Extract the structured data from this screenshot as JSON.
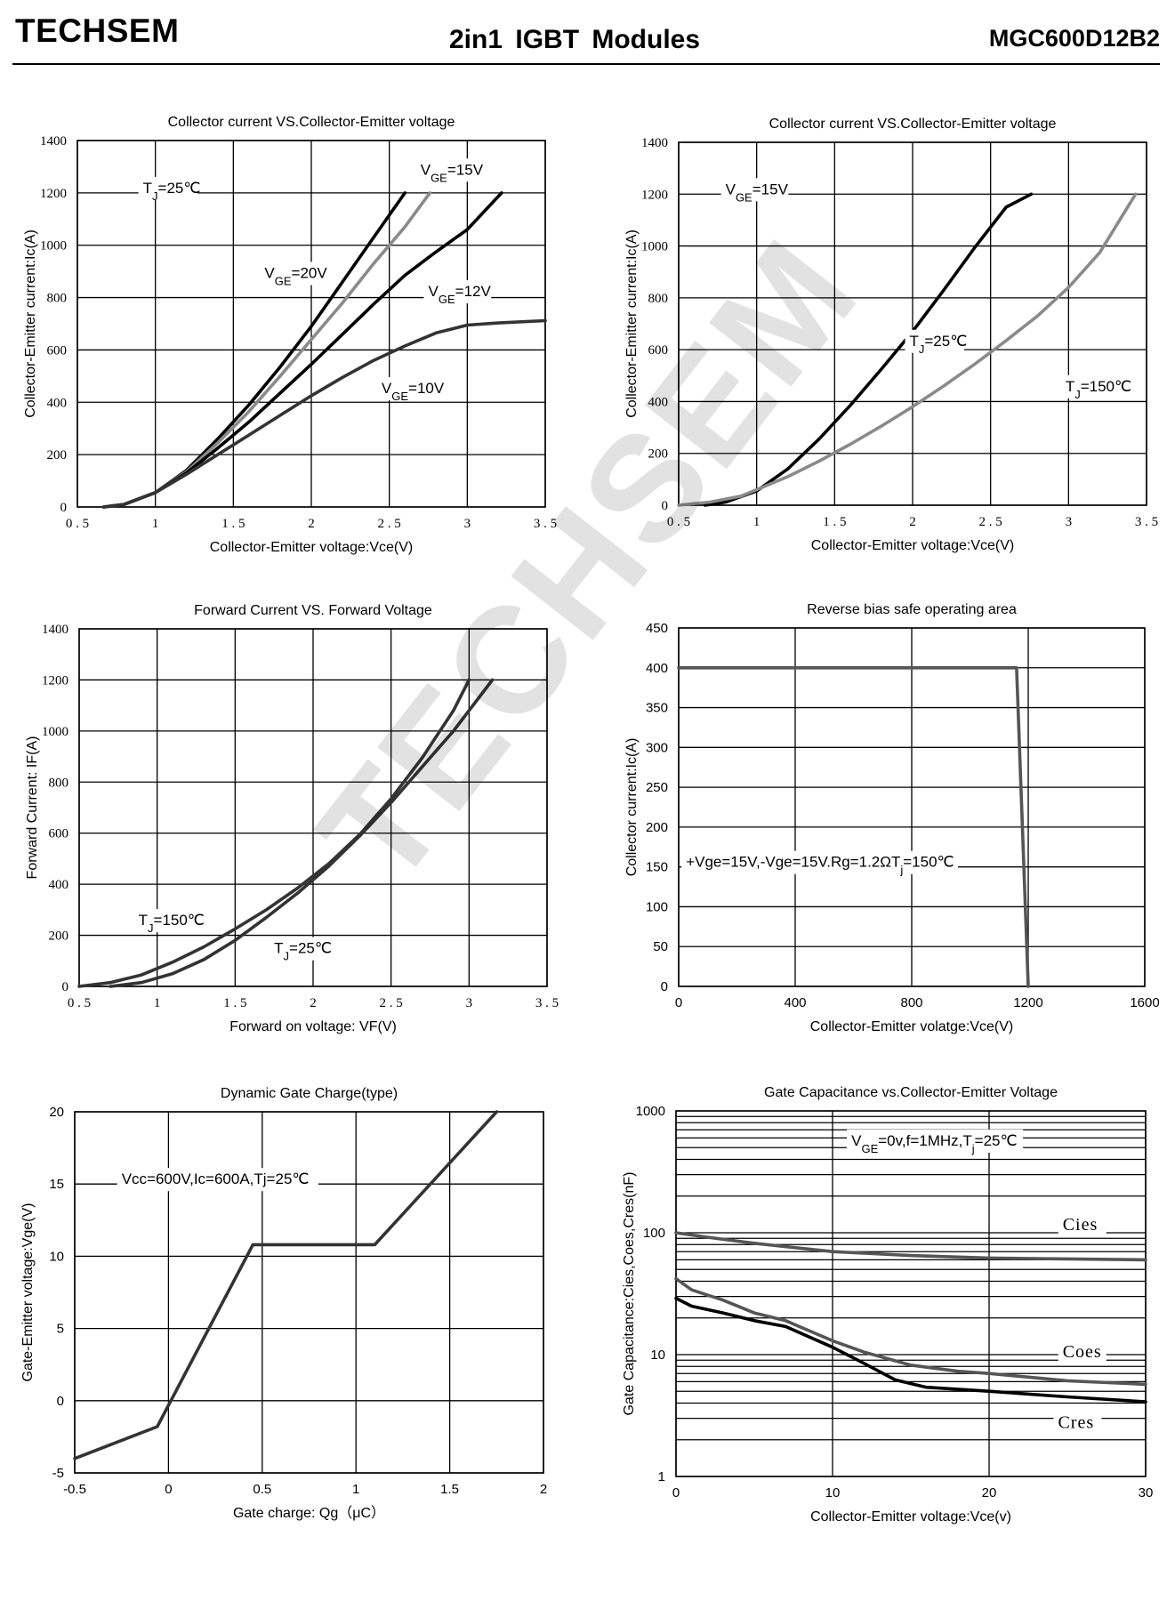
{
  "header": {
    "brand": "TECHSEM",
    "title": "2in1 IGBT Modules",
    "part_number": "MGC600D12B2",
    "watermark": "TECHSEM"
  },
  "colors": {
    "black": "#000000",
    "gray": "#8a8a8a",
    "dark": "#333333",
    "mid": "#555555"
  },
  "chart_data": [
    {
      "type": "line",
      "title": "Collector current VS.Collector-Emitter voltage",
      "xlabel": "Collector-Emitter voltage:Vce(V)",
      "ylabel": "Collector-Emitter current:Ic(A)",
      "xlim": [
        0.5,
        3.5
      ],
      "ylim": [
        0,
        1400
      ],
      "xticks": [
        "0.5",
        "1",
        "1.5",
        "2",
        "2.5",
        "3",
        "3.5"
      ],
      "yticks": [
        "0",
        "200",
        "400",
        "600",
        "800",
        "1000",
        "1200",
        "1400"
      ],
      "annotations": [
        {
          "pre": "T",
          "sub": "J",
          "post": "=25℃",
          "x": 0.92,
          "y": 1200
        },
        {
          "pre": "V",
          "sub": "GE",
          "post": "=15V",
          "x": 2.7,
          "y": 1270
        },
        {
          "pre": "V",
          "sub": "GE",
          "post": "=20V",
          "x": 1.7,
          "y": 875
        },
        {
          "pre": "V",
          "sub": "GE",
          "post": "=12V",
          "x": 2.75,
          "y": 805
        },
        {
          "pre": "V",
          "sub": "GE",
          "post": "=10V",
          "x": 2.45,
          "y": 435
        }
      ],
      "series": [
        {
          "name": "VGE=20V",
          "color": "#000000",
          "points": [
            [
              0.67,
              0
            ],
            [
              0.8,
              10
            ],
            [
              1.0,
              55
            ],
            [
              1.2,
              140
            ],
            [
              1.4,
              260
            ],
            [
              1.6,
              390
            ],
            [
              1.8,
              535
            ],
            [
              2.0,
              690
            ],
            [
              2.2,
              860
            ],
            [
              2.4,
              1030
            ],
            [
              2.6,
              1200
            ]
          ]
        },
        {
          "name": "VGE=15V",
          "color": "#8a8a8a",
          "points": [
            [
              0.67,
              0
            ],
            [
              0.8,
              10
            ],
            [
              1.0,
              55
            ],
            [
              1.2,
              135
            ],
            [
              1.4,
              245
            ],
            [
              1.6,
              365
            ],
            [
              1.8,
              500
            ],
            [
              2.0,
              640
            ],
            [
              2.2,
              780
            ],
            [
              2.4,
              930
            ],
            [
              2.6,
              1070
            ],
            [
              2.76,
              1200
            ]
          ]
        },
        {
          "name": "VGE=12V",
          "color": "#000000",
          "points": [
            [
              0.67,
              0
            ],
            [
              0.8,
              10
            ],
            [
              1.0,
              55
            ],
            [
              1.2,
              130
            ],
            [
              1.4,
              225
            ],
            [
              1.6,
              325
            ],
            [
              1.8,
              435
            ],
            [
              2.0,
              545
            ],
            [
              2.2,
              660
            ],
            [
              2.4,
              775
            ],
            [
              2.6,
              885
            ],
            [
              2.8,
              975
            ],
            [
              3.0,
              1060
            ],
            [
              3.22,
              1200
            ]
          ]
        },
        {
          "name": "VGE=10V",
          "color": "#333333",
          "points": [
            [
              0.67,
              0
            ],
            [
              0.8,
              10
            ],
            [
              1.0,
              55
            ],
            [
              1.2,
              125
            ],
            [
              1.4,
              200
            ],
            [
              1.6,
              275
            ],
            [
              1.8,
              350
            ],
            [
              2.0,
              425
            ],
            [
              2.2,
              495
            ],
            [
              2.4,
              560
            ],
            [
              2.6,
              615
            ],
            [
              2.8,
              665
            ],
            [
              3.0,
              695
            ],
            [
              3.2,
              703
            ],
            [
              3.5,
              712
            ]
          ]
        }
      ]
    },
    {
      "type": "line",
      "title": "Collector current VS.Collector-Emitter voltage",
      "xlabel": "Collector-Emitter voltage:Vce(V)",
      "ylabel": "Collector-Emitter current:Ic(A)",
      "xlim": [
        0.5,
        3.5
      ],
      "ylim": [
        0,
        1400
      ],
      "xticks": [
        "0.5",
        "1",
        "1.5",
        "2",
        "2.5",
        "3",
        "3.5"
      ],
      "yticks": [
        "0",
        "200",
        "400",
        "600",
        "800",
        "1000",
        "1200",
        "1400"
      ],
      "annotations": [
        {
          "pre": "V",
          "sub": "GE",
          "post": "=15V",
          "x": 0.8,
          "y": 1200
        },
        {
          "pre": "T",
          "sub": "J",
          "post": "=25℃",
          "x": 1.98,
          "y": 615
        },
        {
          "pre": "T",
          "sub": "J",
          "post": "=150℃",
          "x": 2.98,
          "y": 440
        }
      ],
      "series": [
        {
          "name": "TJ=25℃",
          "color": "#000000",
          "points": [
            [
              0.67,
              0
            ],
            [
              0.8,
              12
            ],
            [
              1.0,
              55
            ],
            [
              1.2,
              140
            ],
            [
              1.4,
              255
            ],
            [
              1.6,
              385
            ],
            [
              1.8,
              525
            ],
            [
              2.0,
              670
            ],
            [
              2.2,
              830
            ],
            [
              2.4,
              995
            ],
            [
              2.6,
              1150
            ],
            [
              2.76,
              1200
            ]
          ]
        },
        {
          "name": "TJ=150℃",
          "color": "#8a8a8a",
          "points": [
            [
              0.5,
              0
            ],
            [
              0.7,
              12
            ],
            [
              0.9,
              35
            ],
            [
              1.0,
              60
            ],
            [
              1.2,
              110
            ],
            [
              1.4,
              170
            ],
            [
              1.6,
              235
            ],
            [
              1.8,
              305
            ],
            [
              2.0,
              380
            ],
            [
              2.2,
              460
            ],
            [
              2.4,
              545
            ],
            [
              2.6,
              635
            ],
            [
              2.8,
              730
            ],
            [
              3.0,
              840
            ],
            [
              3.2,
              975
            ],
            [
              3.43,
              1200
            ]
          ]
        }
      ]
    },
    {
      "type": "line",
      "title": "Forward Current VS. Forward Voltage",
      "xlabel": "Forward on voltage:  VF(V)",
      "ylabel": "Forward Current:  IF(A)",
      "xlim": [
        0.5,
        3.5
      ],
      "ylim": [
        0,
        1400
      ],
      "xticks": [
        "0.5",
        "1",
        "1.5",
        "2",
        "2.5",
        "3",
        "3.5"
      ],
      "yticks": [
        "0",
        "200",
        "400",
        "600",
        "800",
        "1000",
        "1200",
        "1400"
      ],
      "annotations": [
        {
          "pre": "T",
          "sub": "J",
          "post": "=150℃",
          "x": 0.88,
          "y": 240
        },
        {
          "pre": "T",
          "sub": "J",
          "post": "=25℃",
          "x": 1.75,
          "y": 130
        }
      ],
      "series": [
        {
          "name": "TJ=150℃",
          "color": "#333333",
          "points": [
            [
              0.5,
              0
            ],
            [
              0.7,
              15
            ],
            [
              0.9,
              45
            ],
            [
              1.1,
              95
            ],
            [
              1.3,
              155
            ],
            [
              1.5,
              225
            ],
            [
              1.7,
              300
            ],
            [
              1.9,
              385
            ],
            [
              2.1,
              480
            ],
            [
              2.3,
              595
            ],
            [
              2.5,
              735
            ],
            [
              2.7,
              895
            ],
            [
              2.9,
              1080
            ],
            [
              3.0,
              1200
            ]
          ]
        },
        {
          "name": "TJ=25℃",
          "color": "#333333",
          "points": [
            [
              0.7,
              0
            ],
            [
              0.9,
              15
            ],
            [
              1.1,
              50
            ],
            [
              1.3,
              105
            ],
            [
              1.5,
              180
            ],
            [
              1.7,
              270
            ],
            [
              1.9,
              365
            ],
            [
              2.1,
              470
            ],
            [
              2.3,
              590
            ],
            [
              2.5,
              720
            ],
            [
              2.7,
              860
            ],
            [
              2.9,
              1000
            ],
            [
              3.15,
              1200
            ]
          ]
        }
      ]
    },
    {
      "type": "line",
      "title": "Reverse bias safe operating area",
      "xlabel": "Collector-Emitter volatge:Vce(V)",
      "ylabel": "Collector current:Ic(A)",
      "xlim": [
        0,
        1600
      ],
      "ylim": [
        0,
        450
      ],
      "xticks": [
        "0",
        "400",
        "800",
        "1200",
        "1600"
      ],
      "yticks": [
        "0",
        "50",
        "100",
        "150",
        "200",
        "250",
        "300",
        "350",
        "400",
        "450"
      ],
      "annotations": [
        {
          "pre": "+Vge=15V,-Vge=15V.Rg=1.2ΩT",
          "sub": "j",
          "post": "=150℃",
          "x": 25,
          "y": 150
        }
      ],
      "series": [
        {
          "name": "RBSOA",
          "color": "#555555",
          "points": [
            [
              0,
              400
            ],
            [
              1160,
              400
            ],
            [
              1200,
              0
            ]
          ]
        }
      ]
    },
    {
      "type": "line",
      "title": "Dynamic Gate Charge(type)",
      "xlabel": "Gate charge:  Qg（μC）",
      "ylabel": "Gate-Emitter voltage:Vge(V)",
      "xlim": [
        -0.5,
        2
      ],
      "ylim": [
        -5,
        20
      ],
      "xticks": [
        "-0.5",
        "0",
        "0.5",
        "1",
        "1.5",
        "2"
      ],
      "yticks": [
        "-5",
        "0",
        "5",
        "10",
        "15",
        "20"
      ],
      "annotations": [
        {
          "pre": "Vcc=600V,Ic=600A,Tj=25℃",
          "sub": "",
          "post": "",
          "x": -0.25,
          "y": 15
        }
      ],
      "series": [
        {
          "name": "Vge",
          "color": "#333333",
          "points": [
            [
              -0.5,
              -4
            ],
            [
              -0.06,
              -1.8
            ],
            [
              0.45,
              10.8
            ],
            [
              1.1,
              10.8
            ],
            [
              1.75,
              20
            ]
          ]
        }
      ]
    },
    {
      "type": "line",
      "title": "Gate Capacitance vs.Collector-Emitter Voltage",
      "xlabel": "Collector-Emitter voltage:Vce(v)",
      "ylabel": "Gate Capacitance:Cies,Coes,Cres(nF)",
      "xlim": [
        0,
        30
      ],
      "ylim": [
        1,
        1000
      ],
      "yscale": "log",
      "xticks": [
        "0",
        "10",
        "20",
        "30"
      ],
      "yticks": [
        "1",
        "10",
        "100",
        "1000"
      ],
      "annotations": [
        {
          "pre": "V",
          "sub": "GE",
          "post": "=0v,f=1MHz,T",
          "sub2": "j",
          "post2": "=25℃",
          "x": 11.2,
          "y": 520
        },
        {
          "pre": "Cies",
          "sub": "",
          "post": "",
          "x": 24.7,
          "y": 105
        },
        {
          "pre": "Coes",
          "sub": "",
          "post": "",
          "x": 24.7,
          "y": 9.5
        },
        {
          "pre": "Cres",
          "sub": "",
          "post": "",
          "x": 24.4,
          "y": 2.5
        }
      ],
      "series": [
        {
          "name": "Cies",
          "color": "#555555",
          "points": [
            [
              0,
              100
            ],
            [
              2,
              92
            ],
            [
              5,
              82
            ],
            [
              10,
              70
            ],
            [
              15,
              65
            ],
            [
              20,
              62
            ],
            [
              25,
              61
            ],
            [
              30,
              60
            ]
          ]
        },
        {
          "name": "Coes",
          "color": "#555555",
          "points": [
            [
              0,
              42
            ],
            [
              1,
              34
            ],
            [
              3,
              28
            ],
            [
              5,
              22
            ],
            [
              7,
              19
            ],
            [
              10,
              13
            ],
            [
              12,
              10.5
            ],
            [
              15,
              8.2
            ],
            [
              18,
              7.3
            ],
            [
              20,
              7
            ],
            [
              25,
              6.1
            ],
            [
              30,
              5.7
            ]
          ]
        },
        {
          "name": "Cres",
          "color": "#000000",
          "points": [
            [
              0,
              29
            ],
            [
              1,
              25
            ],
            [
              3,
              22
            ],
            [
              5,
              19
            ],
            [
              7,
              17
            ],
            [
              10,
              11.5
            ],
            [
              12,
              8.5
            ],
            [
              14,
              6.2
            ],
            [
              16,
              5.4
            ],
            [
              20,
              5
            ],
            [
              25,
              4.5
            ],
            [
              30,
              4.1
            ]
          ]
        }
      ]
    }
  ]
}
